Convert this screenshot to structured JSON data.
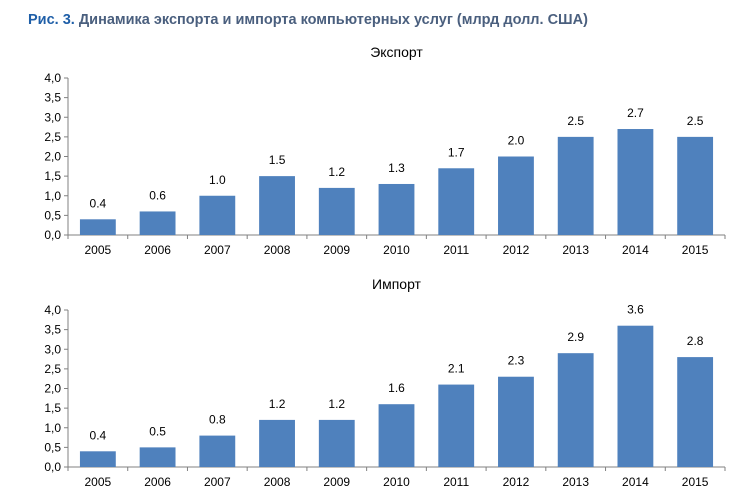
{
  "figure": {
    "label": "Рис. 3.",
    "title": "Динамика экспорта и импорта компьютерных услуг (млрд долл. США)"
  },
  "colors": {
    "bar": "#4f81bd",
    "axis": "#808080"
  },
  "chart_data": [
    {
      "type": "bar",
      "title": "Экспорт",
      "categories": [
        "2005",
        "2006",
        "2007",
        "2008",
        "2009",
        "2010",
        "2011",
        "2012",
        "2013",
        "2014",
        "2015"
      ],
      "values": [
        0.4,
        0.6,
        1.0,
        1.5,
        1.2,
        1.3,
        1.7,
        2.0,
        2.5,
        2.7,
        2.5
      ],
      "data_labels": [
        "0.4",
        "0.6",
        "1.0",
        "1.5",
        "1.2",
        "1.3",
        "1.7",
        "2.0",
        "2.5",
        "2.7",
        "2.5"
      ],
      "ylim": [
        0,
        4.0
      ],
      "yticks": [
        "0,0",
        "0,5",
        "1,0",
        "1,5",
        "2,0",
        "2,5",
        "3,0",
        "3,5",
        "4,0"
      ],
      "grid": false,
      "legend": "none"
    },
    {
      "type": "bar",
      "title": "Импорт",
      "categories": [
        "2005",
        "2006",
        "2007",
        "2008",
        "2009",
        "2010",
        "2011",
        "2012",
        "2013",
        "2014",
        "2015"
      ],
      "values": [
        0.4,
        0.5,
        0.8,
        1.2,
        1.2,
        1.6,
        2.1,
        2.3,
        2.9,
        3.6,
        2.8
      ],
      "data_labels": [
        "0.4",
        "0.5",
        "0.8",
        "1.2",
        "1.2",
        "1.6",
        "2.1",
        "2.3",
        "2.9",
        "3.6",
        "2.8"
      ],
      "ylim": [
        0,
        4.0
      ],
      "yticks": [
        "0,0",
        "0,5",
        "1,0",
        "1,5",
        "2,0",
        "2,5",
        "3,0",
        "3,5",
        "4,0"
      ],
      "grid": false,
      "legend": "none"
    }
  ]
}
